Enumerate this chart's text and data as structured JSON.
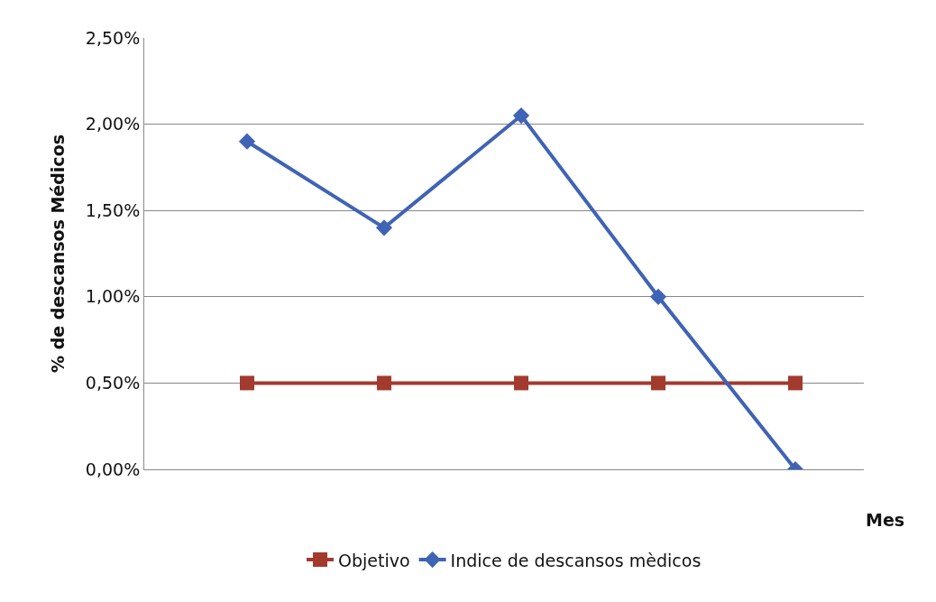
{
  "chart_data": {
    "type": "line",
    "xlabel": "Mes",
    "ylabel": "% de descansos Médicos",
    "categories": [
      null,
      null,
      null,
      null,
      null
    ],
    "series": [
      {
        "name": "Objetivo",
        "color": "#a33a2e",
        "marker": "square",
        "values": [
          0.5,
          0.5,
          0.5,
          0.5,
          0.5
        ]
      },
      {
        "name": "Indice de descansos mèdicos",
        "color": "#3f63b5",
        "marker": "diamond",
        "values": [
          1.9,
          1.4,
          2.05,
          1.0,
          0.0
        ]
      }
    ],
    "ylim": [
      0,
      2.5
    ],
    "yticks": [
      {
        "value": 0,
        "label": "0,00%"
      },
      {
        "value": 0.5,
        "label": "0,50%"
      },
      {
        "value": 1,
        "label": "1,00%"
      },
      {
        "value": 1.5,
        "label": "1,50%"
      },
      {
        "value": 2,
        "label": "2,00%"
      },
      {
        "value": 2.5,
        "label": "2,50%"
      }
    ],
    "grid": "y",
    "legend": "bottom",
    "tick_labels": "y"
  }
}
